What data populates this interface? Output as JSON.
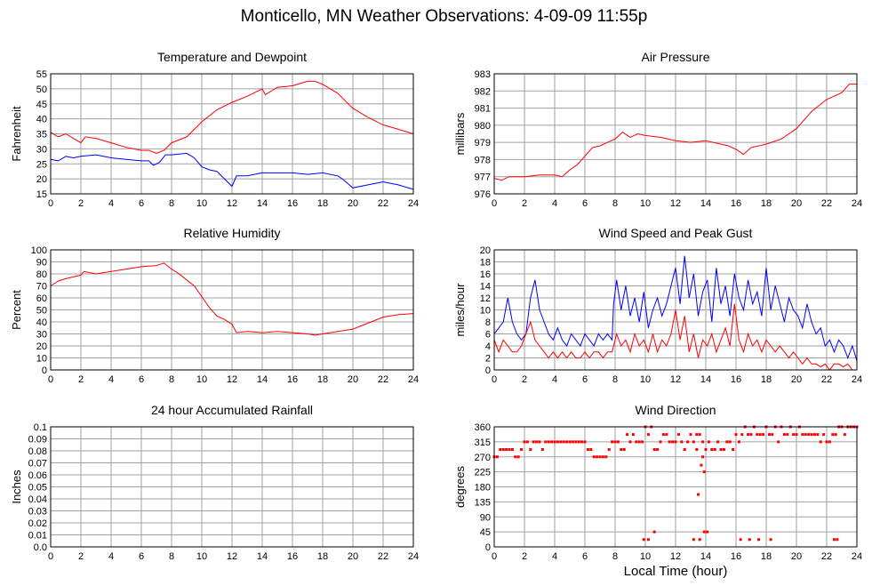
{
  "title": "Monticello, MN Weather Observations: 4-09-09 11:55p",
  "xlabel": "Local Time (hour)",
  "x_ticks": [
    "0",
    "2",
    "4",
    "6",
    "8",
    "10",
    "12",
    "14",
    "16",
    "18",
    "20",
    "22",
    "24"
  ],
  "colors": {
    "red": "#ff0000",
    "blue": "#0000ff",
    "grid": "#a0a0a0",
    "frame": "#000000"
  },
  "chart_data": [
    {
      "type": "line",
      "title": "Temperature and Dewpoint",
      "xlabel": "",
      "ylabel": "Fahrenheit",
      "xlim": [
        0,
        24
      ],
      "ylim": [
        15,
        55
      ],
      "y_ticks": [
        "15",
        "20",
        "25",
        "30",
        "35",
        "40",
        "45",
        "50",
        "55"
      ],
      "grid": true,
      "series": [
        {
          "color": "#ff0000",
          "x": [
            0,
            0.5,
            1,
            1.5,
            2,
            2.3,
            3,
            4,
            5,
            6,
            6.5,
            7,
            7.5,
            8,
            9,
            10,
            11,
            12,
            13,
            14,
            14.2,
            15,
            16,
            17,
            17.5,
            18,
            19,
            20,
            21,
            22,
            23,
            24
          ],
          "y": [
            35.5,
            34,
            35,
            33.5,
            32,
            34,
            33.5,
            32,
            30.5,
            29.5,
            29.5,
            28.5,
            29.5,
            32,
            34,
            39,
            43,
            45.5,
            47.5,
            50,
            48,
            50.5,
            51,
            52.5,
            52.5,
            51.5,
            48.5,
            43.5,
            40.5,
            38,
            36.5,
            35
          ]
        },
        {
          "color": "#0000ff",
          "x": [
            0,
            0.5,
            1,
            1.5,
            2,
            3,
            4,
            5,
            6,
            6.5,
            6.8,
            7.2,
            7.6,
            8,
            9,
            9.5,
            10,
            10.5,
            11,
            12,
            12.3,
            13,
            14,
            15,
            16,
            17,
            18,
            19,
            19.3,
            20,
            21,
            22,
            23,
            24
          ],
          "y": [
            26.5,
            26,
            27.5,
            27,
            27.5,
            28,
            27,
            26.5,
            26,
            26,
            24.5,
            25.5,
            28,
            28,
            28.5,
            27,
            24,
            23,
            22.5,
            17.5,
            21,
            21,
            22,
            22,
            22,
            21.5,
            22,
            21,
            20,
            17,
            18,
            19,
            18,
            16.5
          ]
        }
      ]
    },
    {
      "type": "line",
      "title": "Air Pressure",
      "xlabel": "",
      "ylabel": "millibars",
      "xlim": [
        0,
        24
      ],
      "ylim": [
        976,
        983
      ],
      "y_ticks": [
        "976",
        "977",
        "978",
        "979",
        "980",
        "981",
        "982",
        "983"
      ],
      "grid": true,
      "series": [
        {
          "color": "#ff0000",
          "x": [
            0,
            0.5,
            1,
            2,
            3,
            4,
            4.5,
            5,
            5.5,
            6,
            6.5,
            7,
            7.5,
            8,
            8.5,
            9,
            9.5,
            10,
            11,
            12,
            13,
            14,
            15,
            15.5,
            16,
            16.5,
            17,
            18,
            19,
            20,
            21,
            22,
            23,
            23.5,
            24
          ],
          "y": [
            976.9,
            976.8,
            977,
            977,
            977.1,
            977.1,
            977,
            977.4,
            977.7,
            978.2,
            978.7,
            978.8,
            979,
            979.2,
            979.6,
            979.3,
            979.5,
            979.4,
            979.3,
            979.1,
            979,
            979.1,
            978.9,
            978.8,
            978.6,
            978.3,
            978.7,
            978.9,
            979.2,
            979.8,
            980.8,
            981.5,
            981.9,
            982.4,
            982.4
          ]
        }
      ]
    },
    {
      "type": "line",
      "title": "Relative Humidity",
      "xlabel": "",
      "ylabel": "Percent",
      "xlim": [
        0,
        24
      ],
      "ylim": [
        0,
        100
      ],
      "y_ticks": [
        "0",
        "10",
        "20",
        "30",
        "40",
        "50",
        "60",
        "70",
        "80",
        "90",
        "100"
      ],
      "grid": true,
      "series": [
        {
          "color": "#ff0000",
          "x": [
            0,
            0.5,
            1,
            2,
            2.2,
            3,
            4,
            5,
            6,
            7,
            7.5,
            8,
            8.5,
            9,
            9.5,
            10,
            10.5,
            11,
            11.5,
            12,
            12.3,
            13,
            14,
            15,
            16,
            17,
            17.5,
            18,
            19,
            20,
            21,
            22,
            23,
            24
          ],
          "y": [
            70,
            74,
            76,
            79,
            82,
            80,
            82,
            84,
            86,
            87,
            89,
            84,
            80,
            75,
            70,
            61,
            52,
            45,
            42,
            38,
            31,
            32,
            31,
            32,
            31,
            30,
            29,
            30,
            32,
            34,
            39,
            44,
            46,
            47
          ]
        }
      ]
    },
    {
      "type": "line",
      "title": "Wind Speed and Peak Gust",
      "xlabel": "",
      "ylabel": "miles/hour",
      "xlim": [
        0,
        24
      ],
      "ylim": [
        0,
        20
      ],
      "y_ticks": [
        "0",
        "2",
        "4",
        "6",
        "8",
        "10",
        "12",
        "14",
        "16",
        "18",
        "20"
      ],
      "grid": true,
      "series": [
        {
          "color": "#0000ff",
          "x": [
            0,
            0.3,
            0.6,
            0.9,
            1.2,
            1.5,
            1.8,
            2.1,
            2.4,
            2.7,
            3,
            3.3,
            3.6,
            3.9,
            4.2,
            4.5,
            4.8,
            5.1,
            5.4,
            5.7,
            6,
            6.3,
            6.6,
            6.9,
            7.2,
            7.5,
            7.8,
            7.9,
            8.1,
            8.4,
            8.7,
            9,
            9.3,
            9.6,
            9.9,
            10.2,
            10.5,
            10.8,
            11.1,
            11.4,
            11.7,
            12,
            12.3,
            12.6,
            12.9,
            13.2,
            13.5,
            13.8,
            14.1,
            14.4,
            14.7,
            15,
            15.3,
            15.6,
            15.9,
            16.2,
            16.5,
            16.8,
            17.1,
            17.4,
            17.7,
            18,
            18.3,
            18.6,
            18.9,
            19.2,
            19.5,
            19.8,
            20.1,
            20.4,
            20.7,
            21,
            21.3,
            21.6,
            21.9,
            22.2,
            22.5,
            22.8,
            23.1,
            23.4,
            23.7,
            24
          ],
          "y": [
            6,
            7,
            8,
            12,
            8,
            6,
            5,
            6,
            12,
            15,
            10,
            8,
            6,
            5,
            7,
            5,
            4,
            6,
            5,
            4,
            6,
            5,
            4,
            6,
            5,
            6,
            5,
            11,
            15,
            10,
            14,
            9,
            12,
            8,
            13,
            7,
            10,
            12,
            9,
            11,
            14,
            17,
            11,
            19,
            12,
            16,
            9,
            13,
            15,
            8,
            17,
            11,
            14,
            9,
            16,
            12,
            10,
            15,
            11,
            13,
            9,
            17,
            10,
            14,
            11,
            8,
            12,
            10,
            9,
            7,
            11,
            8,
            6,
            7,
            4,
            5,
            3,
            5,
            4,
            2,
            4,
            1.5
          ]
        },
        {
          "color": "#ff0000",
          "x": [
            0,
            0.3,
            0.6,
            0.9,
            1.2,
            1.5,
            1.8,
            2.1,
            2.4,
            2.7,
            3,
            3.3,
            3.6,
            3.9,
            4.2,
            4.5,
            4.8,
            5.1,
            5.4,
            5.7,
            6,
            6.3,
            6.6,
            6.9,
            7.2,
            7.5,
            7.8,
            8.1,
            8.4,
            8.7,
            9,
            9.3,
            9.6,
            9.9,
            10.2,
            10.5,
            10.8,
            11.1,
            11.4,
            11.7,
            12,
            12.3,
            12.6,
            12.9,
            13.2,
            13.5,
            13.8,
            14.1,
            14.4,
            14.7,
            15,
            15.3,
            15.6,
            15.9,
            16.2,
            16.5,
            16.8,
            17.1,
            17.4,
            17.7,
            18,
            18.3,
            18.6,
            18.9,
            19.2,
            19.5,
            19.8,
            20.1,
            20.4,
            20.7,
            21,
            21.3,
            21.6,
            21.9,
            22.2,
            22.5,
            22.8,
            23.1,
            23.4,
            23.7,
            24
          ],
          "y": [
            5,
            3,
            5,
            4,
            3,
            3,
            4,
            6,
            8,
            5,
            4,
            3,
            2,
            3,
            2,
            3,
            2,
            3,
            2,
            2,
            3,
            2,
            3,
            3,
            2,
            3,
            3,
            6,
            4,
            5,
            3,
            6,
            4,
            5,
            3,
            6,
            3,
            5,
            4,
            6,
            10,
            5,
            9,
            3,
            6,
            2,
            5,
            4,
            6,
            3,
            5,
            7,
            4,
            11,
            5,
            3,
            6,
            4,
            5,
            3,
            5,
            4,
            3,
            4,
            3,
            2,
            3,
            2,
            1,
            2,
            1,
            1,
            0.5,
            1,
            0,
            1,
            1,
            0.5,
            1,
            0,
            0
          ]
        }
      ]
    },
    {
      "type": "line",
      "title": "24 hour Accumulated Rainfall",
      "xlabel": "",
      "ylabel": "Inches",
      "xlim": [
        0,
        24
      ],
      "ylim": [
        0,
        0.1
      ],
      "y_ticks": [
        "0.0",
        "0.01",
        "0.02",
        "0.03",
        "0.04",
        "0.05",
        "0.06",
        "0.07",
        "0.08",
        "0.09",
        "0.1"
      ],
      "grid": true,
      "series": [
        {
          "color": "#ff0000",
          "x": [
            0,
            24
          ],
          "y": [
            0,
            0
          ]
        }
      ]
    },
    {
      "type": "scatter",
      "title": "Wind Direction",
      "xlabel": "Local Time (hour)",
      "ylabel": "degrees",
      "xlim": [
        0,
        24
      ],
      "ylim": [
        0,
        360
      ],
      "y_ticks": [
        "0",
        "45",
        "90",
        "135",
        "180",
        "225",
        "270",
        "315",
        "360"
      ],
      "grid": true,
      "series": [
        {
          "color": "#ff0000",
          "x": [
            0,
            0.2,
            0.4,
            0.6,
            0.8,
            1,
            1.2,
            1.4,
            1.6,
            1.8,
            2,
            2.2,
            2.4,
            2.6,
            2.8,
            3,
            3.2,
            3.4,
            3.6,
            3.8,
            4,
            4.2,
            4.4,
            4.6,
            4.8,
            5,
            5.2,
            5.4,
            5.6,
            5.8,
            6,
            6.2,
            6.4,
            6.6,
            6.8,
            7,
            7.2,
            7.4,
            7.6,
            7.8,
            8,
            8.2,
            8.4,
            8.6,
            8.8,
            9,
            9.2,
            9.4,
            9.6,
            9.8,
            10,
            10.2,
            10.4,
            10.6,
            10.8,
            11,
            11.2,
            11.4,
            11.6,
            11.8,
            12,
            12.2,
            12.4,
            12.6,
            12.8,
            13,
            13.2,
            13.4,
            13.6,
            13.8,
            14,
            14.2,
            14.4,
            14.6,
            14.8,
            15,
            15.2,
            15.4,
            15.6,
            15.8,
            16,
            16.2,
            16.4,
            16.6,
            16.8,
            17,
            17.2,
            17.4,
            17.6,
            17.8,
            18,
            18.2,
            18.4,
            18.6,
            18.8,
            19,
            19.2,
            19.4,
            19.6,
            19.8,
            20,
            20.2,
            20.4,
            20.6,
            20.8,
            21,
            21.2,
            21.4,
            21.6,
            21.8,
            22,
            22.2,
            22.4,
            22.6,
            22.8,
            23,
            23.2,
            23.4,
            23.6,
            23.8,
            24,
            9.9,
            10.2,
            10.6,
            13.2,
            13.6,
            13.5,
            13.9,
            14.1,
            16.3,
            16.9,
            17.5,
            18.3,
            22.5,
            22.7,
            13.7,
            13.8,
            13.4,
            13.9
          ],
          "y": [
            270,
            270,
            292,
            292,
            292,
            292,
            292,
            270,
            270,
            292,
            315,
            315,
            292,
            315,
            315,
            315,
            292,
            315,
            315,
            315,
            315,
            315,
            315,
            315,
            315,
            315,
            315,
            315,
            315,
            315,
            315,
            292,
            292,
            270,
            270,
            270,
            270,
            270,
            292,
            315,
            315,
            315,
            292,
            292,
            337,
            315,
            337,
            315,
            315,
            315,
            360,
            337,
            360,
            292,
            292,
            315,
            337,
            337,
            315,
            315,
            315,
            337,
            315,
            292,
            315,
            337,
            315,
            337,
            337,
            315,
            292,
            315,
            292,
            292,
            315,
            292,
            292,
            315,
            315,
            292,
            337,
            315,
            337,
            360,
            337,
            337,
            360,
            337,
            337,
            337,
            360,
            337,
            337,
            360,
            315,
            360,
            337,
            337,
            360,
            337,
            337,
            360,
            337,
            337,
            337,
            337,
            337,
            337,
            315,
            337,
            315,
            315,
            337,
            337,
            360,
            360,
            337,
            360,
            360,
            360,
            360,
            22,
            22,
            45,
            22,
            22,
            157,
            45,
            45,
            22,
            22,
            22,
            22,
            22,
            22,
            245,
            270,
            292,
            225
          ]
        }
      ]
    }
  ]
}
